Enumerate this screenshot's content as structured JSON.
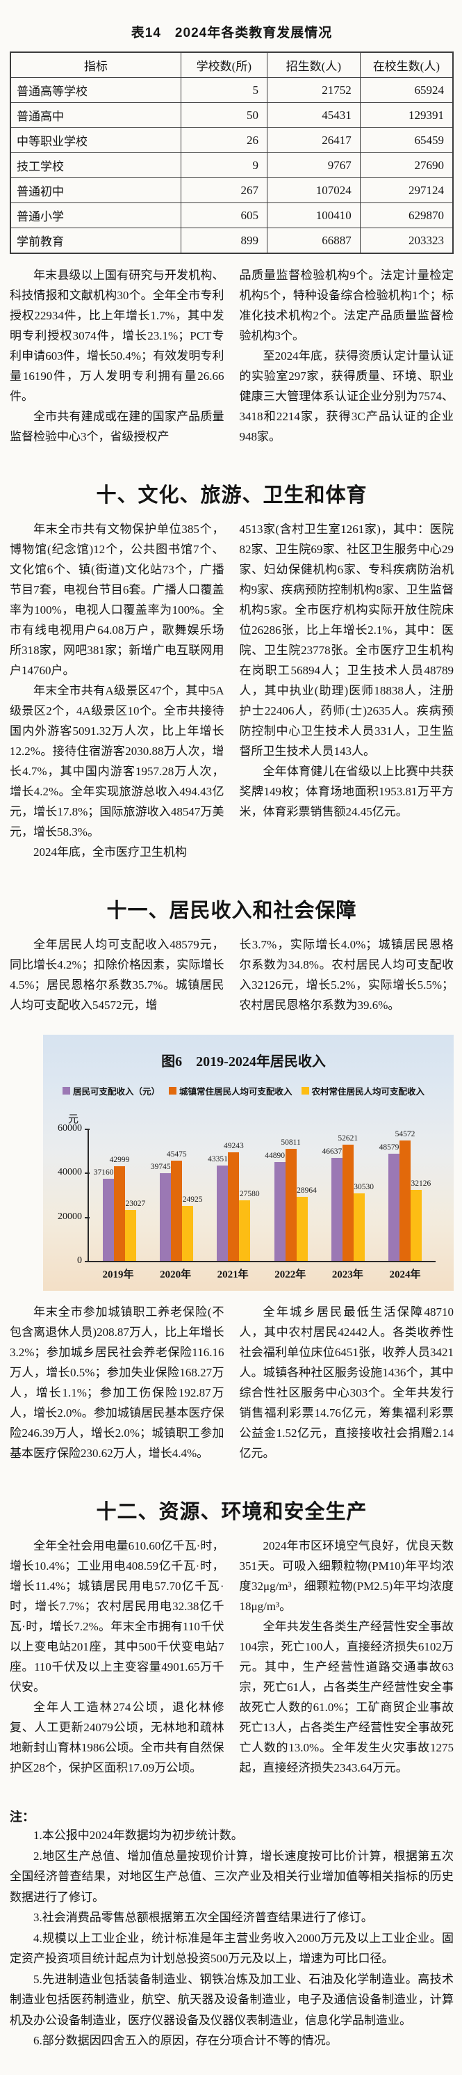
{
  "table": {
    "title": "表14　2024年各类教育发展情况",
    "headers": [
      "指标",
      "学校数(所)",
      "招生数(人)",
      "在校生数(人)"
    ],
    "rows": [
      [
        "普通高等学校",
        "5",
        "21752",
        "65924"
      ],
      [
        "普通高中",
        "50",
        "45431",
        "129391"
      ],
      [
        "中等职业学校",
        "26",
        "26417",
        "65459"
      ],
      [
        "技工学校",
        "9",
        "9767",
        "27690"
      ],
      [
        "普通初中",
        "267",
        "107024",
        "297124"
      ],
      [
        "普通小学",
        "605",
        "100410",
        "629870"
      ],
      [
        "学前教育",
        "899",
        "66887",
        "203323"
      ]
    ]
  },
  "sections": {
    "science": {
      "left": [
        {
          "indent": true,
          "text": "年末县级以上国有研究与开发机构、科技情报和文献机构30个。全年全市专利授权22934件，比上年增长1.7%，其中发明专利授权3074件，增长23.1%；PCT专利申请603件，增长50.4%；有效发明专利量16190件，万人发明专利拥有量26.66件。"
        },
        {
          "indent": true,
          "text": "全市共有建成或在建的国家产品质量监督检验中心3个，省级授权产"
        }
      ],
      "right": [
        {
          "indent": false,
          "text": "品质量监督检验机构9个。法定计量检定机构5个，特种设备综合检验机构1个；标准化技术机构2个。法定产品质量监督检验机构3个。"
        },
        {
          "indent": true,
          "text": "至2024年底，获得资质认定计量认证的实验室297家，获得质量、环境、职业健康三大管理体系认证企业分别为7574、3418和2214家，获得3C产品认证的企业948家。"
        }
      ]
    },
    "culture": {
      "heading": "十、文化、旅游、卫生和体育",
      "left": [
        {
          "indent": true,
          "text": "年末全市共有文物保护单位385个，博物馆(纪念馆)12个，公共图书馆7个、文化馆6个、镇(街道)文化站73个，广播节目7套，电视台节目6套。广播人口覆盖率为100%，电视人口覆盖率为100%。全市有线电视用户64.08万户，歌舞娱乐场所318家，网吧381家；新增广电互联网用户14760户。"
        },
        {
          "indent": true,
          "text": "年末全市共有A级景区47个，其中5A级景区2个，4A级景区10个。全市共接待国内外游客5091.32万人次，比上年增长12.2%。接待住宿游客2030.88万人次，增长4.7%，其中国内游客1957.28万人次，增长4.2%。全年实现旅游总收入494.43亿元，增长17.8%；国际旅游收入48547万美元，增长58.3%。"
        },
        {
          "indent": true,
          "text": "2024年底，全市医疗卫生机构"
        }
      ],
      "right": [
        {
          "indent": false,
          "text": "4513家(含村卫生室1261家)，其中：医院82家、卫生院69家、社区卫生服务中心29家、妇幼保健机构6家、专科疾病防治机构9家、疾病预防控制机构8家、卫生监督机构5家。全市医疗机构实际开放住院床位26286张，比上年增长2.1%，其中：医院、卫生院23778张。全市医疗卫生机构在岗职工56894人；卫生技术人员48789人，其中执业(助理)医师18838人，注册护士22406人，药师(士)2635人。疾病预防控制中心卫生技术人员331人，卫生监督所卫生技术人员143人。"
        },
        {
          "indent": true,
          "text": "全年体育健儿在省级以上比赛中共获奖牌149枚；体育场地面积1953.81万平方米，体育彩票销售额24.45亿元。"
        }
      ]
    },
    "income": {
      "heading": "十一、居民收入和社会保障",
      "left": [
        {
          "indent": true,
          "text": "全年居民人均可支配收入48579元，同比增长4.2%；扣除价格因素，实际增长4.5%；居民恩格尔系数35.7%。城镇居民人均可支配收入54572元，增"
        }
      ],
      "right": [
        {
          "indent": false,
          "text": "长3.7%，实际增长4.0%；城镇居民恩格尔系数为34.8%。农村居民人均可支配收入32126元，增长5.2%，实际增长5.5%；农村居民恩格尔系数为39.6%。"
        }
      ]
    },
    "social": {
      "left": [
        {
          "indent": true,
          "text": "年末全市参加城镇职工养老保险(不包含离退休人员)208.87万人，比上年增长3.2%；参加城乡居民社会养老保险116.16万人，增长0.5%；参加失业保险168.27万人，增长1.1%；参加工伤保险192.87万人，增长2.0%。参加城镇居民基本医疗保险246.39万人，增长2.0%；城镇职工参加基本医疗保险230.62万人，增长4.4%。"
        }
      ],
      "right": [
        {
          "indent": true,
          "text": "全年城乡居民最低生活保障48710人，其中农村居民42442人。各类收养性社会福利单位床位6451张，收养人员3421人。城镇各种社区服务设施1436个，其中综合性社区服务中心303个。全年共发行销售福利彩票14.76亿元，筹集福利彩票公益金1.52亿元，直接接收社会捐赠2.14亿元。"
        }
      ]
    },
    "environment": {
      "heading": "十二、资源、环境和安全生产",
      "left": [
        {
          "indent": true,
          "text": "全年全社会用电量610.60亿千瓦·时，增长10.4%；工业用电408.59亿千瓦·时，增长11.4%；城镇居民用电57.70亿千瓦·时，增长7.7%；农村居民用电32.38亿千瓦·时，增长7.2%。年末全市拥有110千伏以上变电站201座，其中500千伏变电站7座。110千伏及以上主变容量4901.65万千伏安。"
        },
        {
          "indent": true,
          "text": "全年人工造林274公顷，退化林修复、人工更新24079公顷，无林地和疏林地新封山育林1986公顷。全市共有自然保护区28个，保护区面积17.09万公顷。"
        }
      ],
      "right": [
        {
          "indent": true,
          "text": "2024年市区环境空气良好，优良天数351天。可吸入细颗粒物(PM10)年平均浓度32μg/m³，细颗粒物(PM2.5)年平均浓度18μg/m³。"
        },
        {
          "indent": true,
          "text": "全年共发生各类生产经营性安全事故104宗，死亡100人，直接经济损失6102万元。其中，生产经营性道路交通事故63宗，死亡61人，占各类生产经营性安全事故死亡人数的61.0%；工矿商贸企业事故死亡13人，占各类生产经营性安全事故死亡人数的13.0%。全年发生火灾事故1275起，直接经济损失2343.64万元。"
        }
      ]
    }
  },
  "chart_data": {
    "type": "bar",
    "title": "图6　2019-2024年居民收入",
    "ylabel": "元",
    "categories": [
      "2019年",
      "2020年",
      "2021年",
      "2022年",
      "2023年",
      "2024年"
    ],
    "series": [
      {
        "name": "居民可支配收入（元）",
        "color": "#9b78b4",
        "values": [
          37160,
          39745,
          43351,
          44890,
          46637,
          48579
        ]
      },
      {
        "name": "城镇常住居民人均可支配收入",
        "color": "#e2690b",
        "values": [
          42999,
          45475,
          49243,
          50811,
          52621,
          54572
        ]
      },
      {
        "name": "农村常住居民人均可支配收入",
        "color": "#fdbd14",
        "values": [
          23027,
          24925,
          27580,
          28964,
          30530,
          32126
        ]
      }
    ],
    "ylim": [
      0,
      60000
    ],
    "yticks": [
      0,
      20000,
      40000,
      60000
    ],
    "legend_position": "top",
    "grid": false
  },
  "notes": {
    "label": "注：",
    "items": [
      "1.本公报中2024年数据均为初步统计数。",
      "2.地区生产总值、增加值总量按现价计算，增长速度按可比价计算，根据第五次全国经济普查结果，对地区生产总值、三次产业及相关行业增加值等相关指标的历史数据进行了修订。",
      "3.社会消费品零售总额根据第五次全国经济普查结果进行了修订。",
      "4.规模以上工业企业，统计标准是年主营业务收入2000万元及以上工业企业。固定资产投资项目统计起点为计划总投资500万元及以上，增速为可比口径。",
      "5.先进制造业包括装备制造业、钢铁冶炼及加工业、石油及化学制造业。高技术制造业包括医药制造业，航空、航天器及设备制造业，电子及通信设备制造业，计算机及办公设备制造业，医疗仪器设备及仪器仪表制造业，信息化学品制造业。",
      "6.部分数据因四舍五入的原因，存在分项合计不等的情况。"
    ]
  }
}
